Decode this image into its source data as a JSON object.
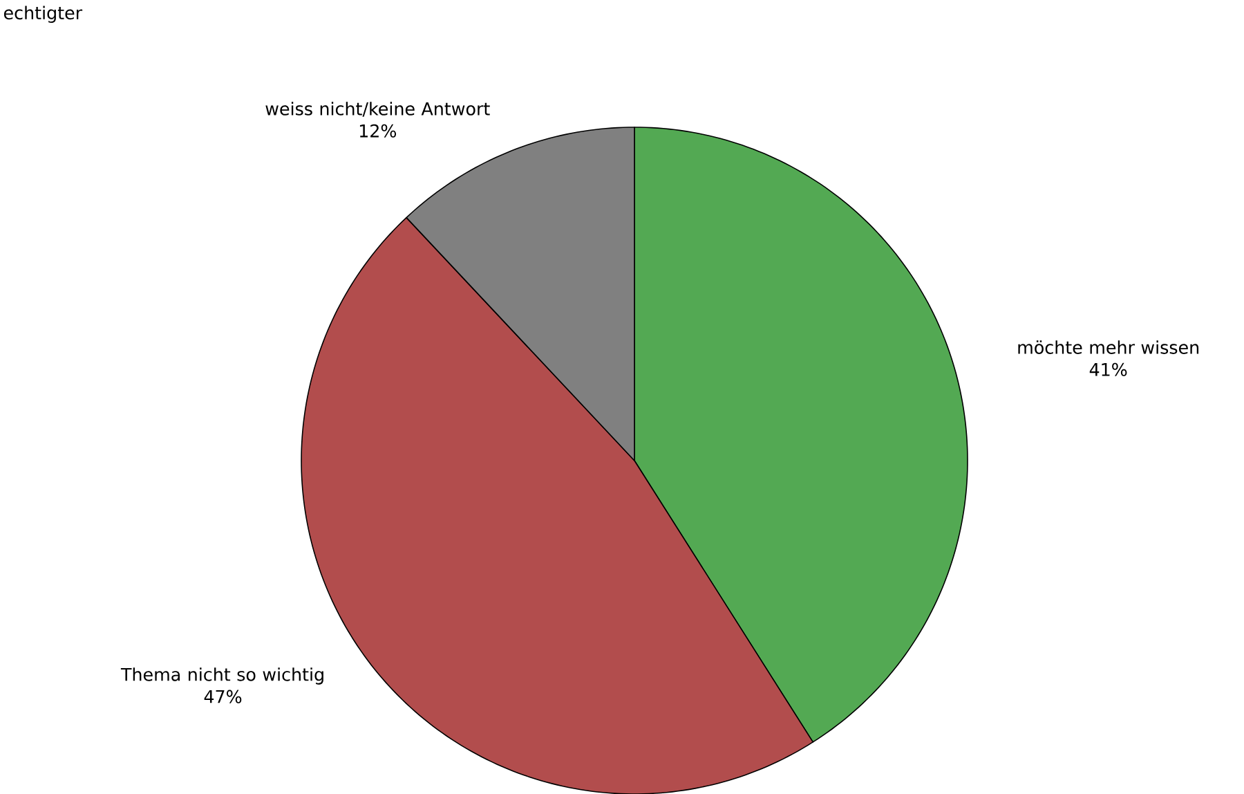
{
  "chart_data": {
    "type": "pie",
    "categories": [
      "möchte mehr wissen",
      "Thema nicht so wichtig",
      "weiss nicht/keine Antwort"
    ],
    "values": [
      41,
      47,
      12
    ],
    "value_labels": [
      "41%",
      "47%",
      "12%"
    ],
    "colors": [
      "#53a953",
      "#b24d4d",
      "#808080"
    ],
    "annotations": [
      "echtigter"
    ]
  }
}
